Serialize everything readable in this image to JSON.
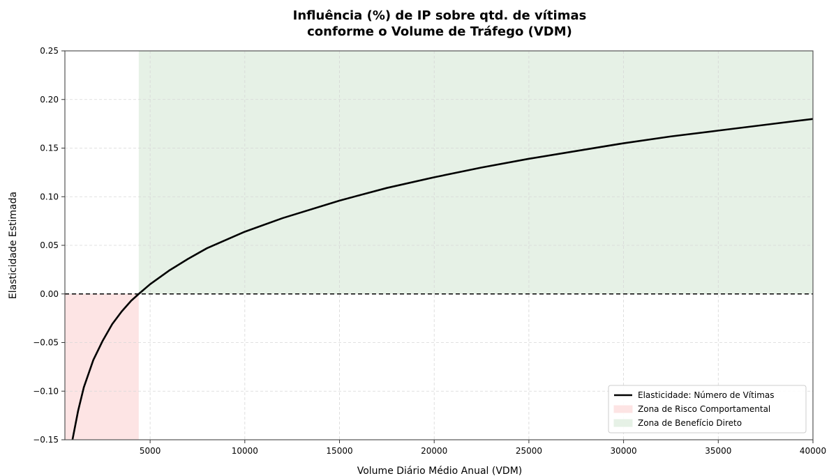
{
  "chart_data": {
    "type": "line",
    "title_lines": [
      "Influência (%) de IP sobre qtd. de vítimas",
      "conforme o Volume de Tráfego (VDM)"
    ],
    "xlabel": "Volume Diário Médio Anual (VDM)",
    "ylabel": "Elasticidade Estimada",
    "xlim": [
      500,
      40000
    ],
    "ylim": [
      -0.15,
      0.25
    ],
    "x_ticks": [
      5000,
      10000,
      15000,
      20000,
      25000,
      30000,
      35000,
      40000
    ],
    "x_tick_labels": [
      "5000",
      "10000",
      "15000",
      "20000",
      "25000",
      "30000",
      "35000",
      "40000"
    ],
    "y_ticks": [
      -0.15,
      -0.1,
      -0.05,
      0.0,
      0.05,
      0.1,
      0.15,
      0.2,
      0.25
    ],
    "y_tick_labels": [
      "−0.15",
      "−0.10",
      "−0.05",
      "0.00",
      "0.05",
      "0.10",
      "0.15",
      "0.20",
      "0.25"
    ],
    "grid": true,
    "legend_position": "lower-right",
    "reference_line": {
      "y": 0,
      "style": "dashed",
      "color": "#000000"
    },
    "zones": [
      {
        "name": "Zona de Risco Comportamental",
        "x_start": 500,
        "x_end": 4400,
        "y_start": -0.15,
        "y_end": 0.0,
        "color": "#fde4e4"
      },
      {
        "name": "Zona de Benefício Direto",
        "x_start": 4400,
        "x_end": 40000,
        "y_start": 0.0,
        "y_end": 0.25,
        "color": "#e6f1e6"
      }
    ],
    "series": [
      {
        "name": "Elasticidade: Número de Vítimas",
        "color": "#000000",
        "x": [
          900,
          1000,
          1200,
          1500,
          2000,
          2500,
          3000,
          3500,
          4000,
          4400,
          5000,
          6000,
          7000,
          8000,
          10000,
          12000,
          15000,
          17500,
          20000,
          22500,
          25000,
          27500,
          30000,
          32500,
          35000,
          37500,
          40000
        ],
        "y": [
          -0.151,
          -0.14,
          -0.12,
          -0.096,
          -0.068,
          -0.048,
          -0.031,
          -0.018,
          -0.007,
          0.0,
          0.01,
          0.024,
          0.036,
          0.047,
          0.064,
          0.078,
          0.096,
          0.109,
          0.12,
          0.13,
          0.139,
          0.147,
          0.155,
          0.162,
          0.168,
          0.174,
          0.18
        ]
      }
    ]
  }
}
